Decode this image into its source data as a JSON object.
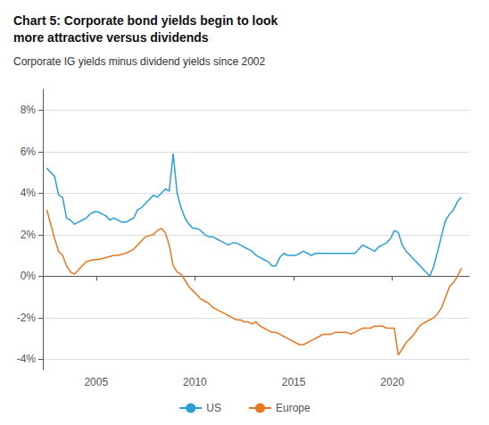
{
  "chart_data": {
    "type": "line",
    "title": "Chart 5: Corporate bond yields begin to look\nmore attractive versus dividends",
    "subtitle": "Corporate IG yields minus dividend yields since 2002",
    "xlim": [
      2002.3,
      2023.9
    ],
    "xticks": [
      2005,
      2010,
      2015,
      2020
    ],
    "ylim": [
      -4.5,
      9.0
    ],
    "yticks": [
      {
        "value": -4,
        "label": "-4%"
      },
      {
        "value": -2,
        "label": "-2%"
      },
      {
        "value": 0,
        "label": "0%"
      },
      {
        "value": 2,
        "label": "2%"
      },
      {
        "value": 4,
        "label": "4%"
      },
      {
        "value": 6,
        "label": "6%"
      },
      {
        "value": 8,
        "label": "8%"
      }
    ],
    "grid": "y",
    "legend": "bottom",
    "series": [
      {
        "name": "US",
        "color": "#2b9fd4",
        "x": [
          2002.5,
          2002.7,
          2002.9,
          2003.1,
          2003.3,
          2003.5,
          2003.7,
          2003.9,
          2004.1,
          2004.3,
          2004.5,
          2004.7,
          2004.9,
          2005.1,
          2005.3,
          2005.5,
          2005.7,
          2005.9,
          2006.1,
          2006.3,
          2006.5,
          2006.7,
          2006.9,
          2007.1,
          2007.3,
          2007.5,
          2007.7,
          2007.9,
          2008.1,
          2008.3,
          2008.5,
          2008.7,
          2008.9,
          2009.1,
          2009.3,
          2009.5,
          2009.7,
          2009.9,
          2010.1,
          2010.3,
          2010.5,
          2010.7,
          2010.9,
          2011.1,
          2011.3,
          2011.5,
          2011.7,
          2011.9,
          2012.1,
          2012.3,
          2012.5,
          2012.7,
          2012.9,
          2013.1,
          2013.3,
          2013.5,
          2013.7,
          2013.9,
          2014.1,
          2014.3,
          2014.5,
          2014.7,
          2014.9,
          2015.1,
          2015.3,
          2015.5,
          2015.7,
          2015.9,
          2016.1,
          2016.3,
          2016.5,
          2016.7,
          2016.9,
          2017.1,
          2017.3,
          2017.5,
          2017.7,
          2017.9,
          2018.1,
          2018.3,
          2018.5,
          2018.7,
          2018.9,
          2019.1,
          2019.3,
          2019.5,
          2019.7,
          2019.9,
          2020.1,
          2020.3,
          2020.5,
          2020.7,
          2020.9,
          2021.1,
          2021.3,
          2021.5,
          2021.7,
          2021.9,
          2022.1,
          2022.3,
          2022.5,
          2022.7,
          2022.9,
          2023.1,
          2023.3,
          2023.5
        ],
        "values": [
          5.2,
          5.0,
          4.8,
          3.9,
          3.8,
          2.8,
          2.7,
          2.5,
          2.6,
          2.7,
          2.8,
          3.0,
          3.1,
          3.1,
          3.0,
          2.9,
          2.7,
          2.8,
          2.7,
          2.6,
          2.6,
          2.7,
          2.8,
          3.2,
          3.3,
          3.5,
          3.7,
          3.9,
          3.8,
          4.0,
          4.2,
          4.1,
          5.9,
          4.0,
          3.3,
          2.8,
          2.5,
          2.3,
          2.3,
          2.2,
          2.0,
          1.9,
          1.9,
          1.8,
          1.7,
          1.6,
          1.5,
          1.6,
          1.6,
          1.5,
          1.4,
          1.3,
          1.2,
          1.0,
          0.9,
          0.8,
          0.7,
          0.5,
          0.5,
          0.9,
          1.1,
          1.0,
          1.0,
          1.0,
          1.1,
          1.2,
          1.1,
          1.0,
          1.1,
          1.1,
          1.1,
          1.1,
          1.1,
          1.1,
          1.1,
          1.1,
          1.1,
          1.1,
          1.1,
          1.3,
          1.5,
          1.4,
          1.3,
          1.2,
          1.4,
          1.5,
          1.6,
          1.8,
          2.2,
          2.1,
          1.5,
          1.2,
          1.0,
          0.8,
          0.6,
          0.4,
          0.2,
          0.0,
          0.5,
          1.2,
          2.0,
          2.7,
          3.0,
          3.2,
          3.6,
          3.8
        ]
      },
      {
        "name": "Europe",
        "color": "#e8761e",
        "x": [
          2002.5,
          2002.7,
          2002.9,
          2003.1,
          2003.3,
          2003.5,
          2003.7,
          2003.9,
          2004.1,
          2004.5,
          2004.9,
          2005.1,
          2005.5,
          2005.9,
          2006.1,
          2006.5,
          2006.9,
          2007.1,
          2007.3,
          2007.5,
          2007.9,
          2008.1,
          2008.3,
          2008.5,
          2008.7,
          2008.9,
          2009.1,
          2009.3,
          2009.5,
          2009.7,
          2009.9,
          2010.1,
          2010.3,
          2010.5,
          2010.7,
          2010.9,
          2011.1,
          2011.3,
          2011.5,
          2011.7,
          2011.9,
          2012.1,
          2012.3,
          2012.5,
          2012.7,
          2012.9,
          2013.1,
          2013.3,
          2013.5,
          2013.7,
          2013.9,
          2014.1,
          2014.3,
          2014.5,
          2014.7,
          2014.9,
          2015.1,
          2015.3,
          2015.5,
          2015.7,
          2015.9,
          2016.1,
          2016.3,
          2016.5,
          2016.7,
          2016.9,
          2017.1,
          2017.3,
          2017.5,
          2017.7,
          2017.9,
          2018.1,
          2018.3,
          2018.5,
          2018.7,
          2018.9,
          2019.1,
          2019.3,
          2019.5,
          2019.7,
          2019.9,
          2020.1,
          2020.3,
          2020.5,
          2020.7,
          2020.9,
          2021.1,
          2021.3,
          2021.5,
          2021.7,
          2021.9,
          2022.1,
          2022.3,
          2022.5,
          2022.7,
          2022.9,
          2023.1,
          2023.3,
          2023.5
        ],
        "values": [
          3.2,
          2.5,
          1.8,
          1.2,
          1.0,
          0.5,
          0.2,
          0.1,
          0.3,
          0.7,
          0.8,
          0.8,
          0.9,
          1.0,
          1.0,
          1.1,
          1.3,
          1.5,
          1.7,
          1.9,
          2.0,
          2.2,
          2.3,
          2.1,
          1.5,
          0.5,
          0.2,
          0.1,
          -0.2,
          -0.5,
          -0.7,
          -0.9,
          -1.1,
          -1.2,
          -1.3,
          -1.5,
          -1.6,
          -1.7,
          -1.8,
          -1.9,
          -2.0,
          -2.1,
          -2.1,
          -2.2,
          -2.2,
          -2.3,
          -2.2,
          -2.4,
          -2.5,
          -2.6,
          -2.7,
          -2.7,
          -2.8,
          -2.9,
          -3.0,
          -3.1,
          -3.2,
          -3.3,
          -3.3,
          -3.2,
          -3.1,
          -3.0,
          -2.9,
          -2.8,
          -2.8,
          -2.8,
          -2.7,
          -2.7,
          -2.7,
          -2.7,
          -2.8,
          -2.7,
          -2.6,
          -2.5,
          -2.5,
          -2.5,
          -2.4,
          -2.4,
          -2.4,
          -2.5,
          -2.5,
          -2.5,
          -3.8,
          -3.5,
          -3.2,
          -3.0,
          -2.8,
          -2.5,
          -2.3,
          -2.2,
          -2.1,
          -2.0,
          -1.8,
          -1.5,
          -1.0,
          -0.5,
          -0.3,
          0.0,
          0.4
        ]
      }
    ]
  }
}
